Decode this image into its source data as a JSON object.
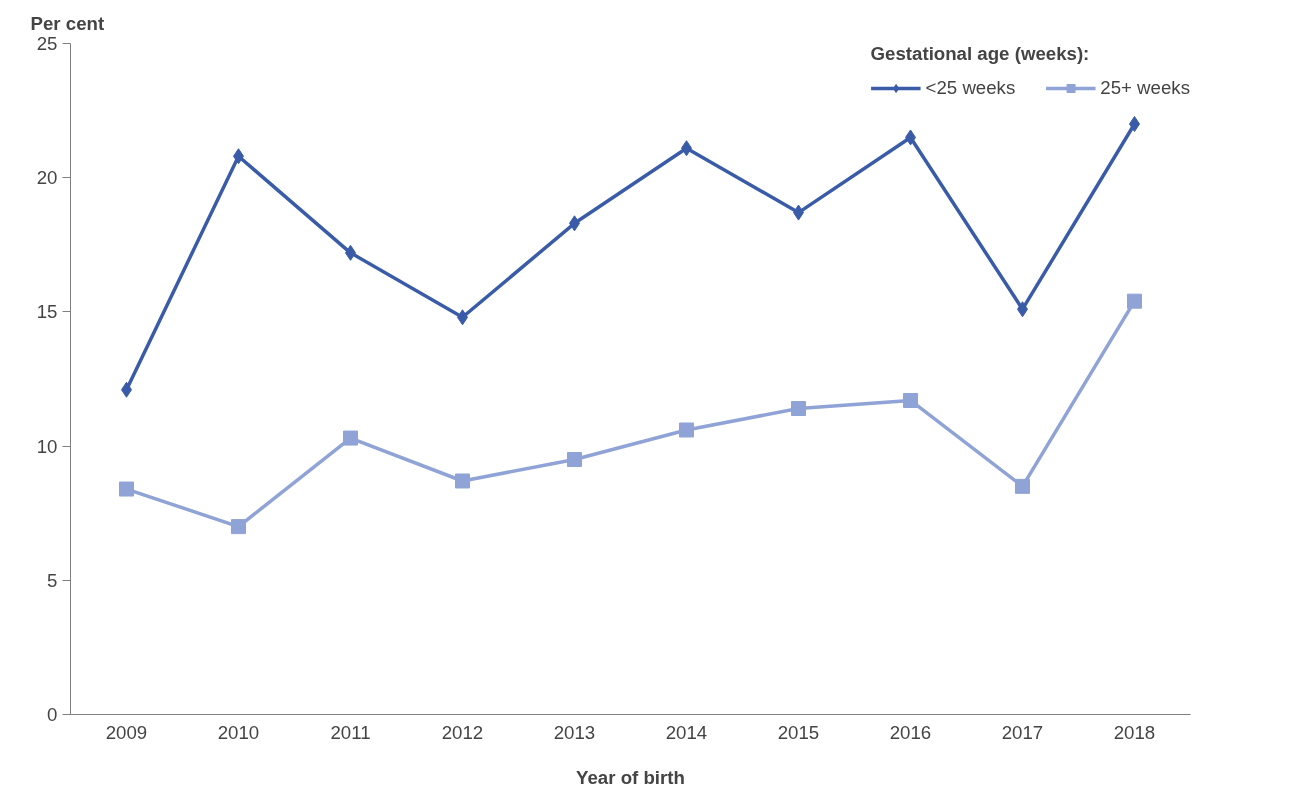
{
  "chart_data": {
    "type": "line",
    "xlabel": "Year of birth",
    "ylabel": "Per cent",
    "legend_title": "Gestational age (weeks):",
    "categories": [
      "2009",
      "2010",
      "2011",
      "2012",
      "2013",
      "2014",
      "2015",
      "2016",
      "2017",
      "2018"
    ],
    "series": [
      {
        "name": "<25 weeks",
        "color": "#3a5ca8",
        "marker": "diamond",
        "values": [
          12.1,
          20.8,
          17.2,
          14.8,
          18.3,
          21.1,
          18.7,
          21.5,
          15.1,
          22.0
        ]
      },
      {
        "name": "25+ weeks",
        "color": "#8fa3d6",
        "marker": "square",
        "values": [
          8.4,
          7.0,
          10.3,
          8.7,
          9.5,
          10.6,
          11.4,
          11.7,
          8.5,
          15.4
        ]
      }
    ],
    "ylim": [
      0,
      25
    ],
    "yticks": [
      0,
      5,
      10,
      15,
      20,
      25
    ],
    "grid": false,
    "legend": "top right",
    "line_style": "solid"
  }
}
